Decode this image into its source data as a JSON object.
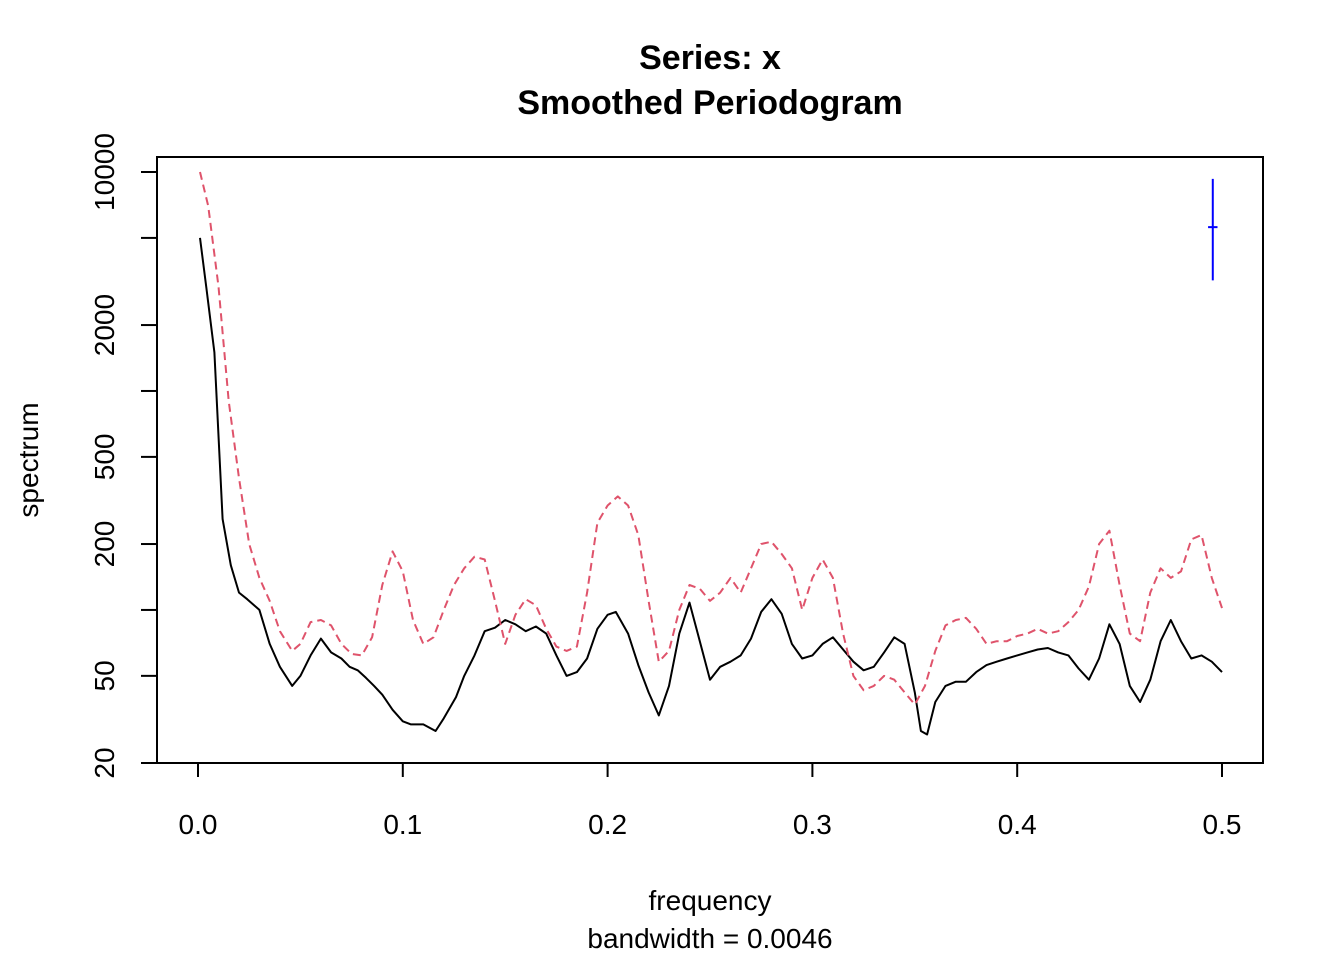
{
  "chart_data": {
    "type": "line",
    "title": "Series: x",
    "subtitle": "Smoothed Periodogram",
    "xlabel": "frequency",
    "xsublabel": "bandwidth = 0.0046",
    "ylabel": "spectrum",
    "xlim": [
      0.0,
      0.5
    ],
    "ylim": [
      20,
      10000
    ],
    "ylog": true,
    "x_ticks": [
      "0.0",
      "0.1",
      "0.2",
      "0.3",
      "0.4",
      "0.5"
    ],
    "y_ticks": [
      {
        "value": 20,
        "label": "20"
      },
      {
        "value": 50,
        "label": "50"
      },
      {
        "value": 100,
        "label": ""
      },
      {
        "value": 200,
        "label": "200"
      },
      {
        "value": 500,
        "label": "500"
      },
      {
        "value": 1000,
        "label": ""
      },
      {
        "value": 2000,
        "label": "2000"
      },
      {
        "value": 5000,
        "label": ""
      },
      {
        "value": 10000,
        "label": "10000"
      }
    ],
    "grid": false,
    "series": [
      {
        "color": "#000000",
        "dash": "solid",
        "points": [
          [
            0.001,
            5000
          ],
          [
            0.004,
            3000
          ],
          [
            0.008,
            1500
          ],
          [
            0.012,
            260
          ],
          [
            0.016,
            160
          ],
          [
            0.02,
            120
          ],
          [
            0.024,
            112
          ],
          [
            0.03,
            100
          ],
          [
            0.035,
            70
          ],
          [
            0.04,
            55
          ],
          [
            0.046,
            45
          ],
          [
            0.05,
            50
          ],
          [
            0.055,
            62
          ],
          [
            0.06,
            74
          ],
          [
            0.065,
            64
          ],
          [
            0.07,
            60
          ],
          [
            0.074,
            55
          ],
          [
            0.078,
            53
          ],
          [
            0.082,
            49
          ],
          [
            0.086,
            45
          ],
          [
            0.09,
            41
          ],
          [
            0.095,
            35
          ],
          [
            0.1,
            31
          ],
          [
            0.104,
            30
          ],
          [
            0.11,
            30
          ],
          [
            0.116,
            28
          ],
          [
            0.12,
            32
          ],
          [
            0.126,
            40
          ],
          [
            0.13,
            50
          ],
          [
            0.135,
            62
          ],
          [
            0.14,
            80
          ],
          [
            0.145,
            83
          ],
          [
            0.15,
            90
          ],
          [
            0.155,
            86
          ],
          [
            0.16,
            80
          ],
          [
            0.165,
            84
          ],
          [
            0.17,
            78
          ],
          [
            0.175,
            62
          ],
          [
            0.18,
            50
          ],
          [
            0.185,
            52
          ],
          [
            0.19,
            60
          ],
          [
            0.195,
            82
          ],
          [
            0.2,
            95
          ],
          [
            0.204,
            98
          ],
          [
            0.21,
            78
          ],
          [
            0.215,
            56
          ],
          [
            0.22,
            42
          ],
          [
            0.225,
            33
          ],
          [
            0.23,
            45
          ],
          [
            0.235,
            78
          ],
          [
            0.24,
            108
          ],
          [
            0.245,
            72
          ],
          [
            0.25,
            48
          ],
          [
            0.255,
            55
          ],
          [
            0.26,
            58
          ],
          [
            0.265,
            62
          ],
          [
            0.27,
            74
          ],
          [
            0.275,
            98
          ],
          [
            0.28,
            112
          ],
          [
            0.285,
            96
          ],
          [
            0.29,
            70
          ],
          [
            0.295,
            60
          ],
          [
            0.3,
            62
          ],
          [
            0.305,
            70
          ],
          [
            0.31,
            75
          ],
          [
            0.315,
            66
          ],
          [
            0.32,
            58
          ],
          [
            0.325,
            53
          ],
          [
            0.33,
            55
          ],
          [
            0.335,
            64
          ],
          [
            0.34,
            75
          ],
          [
            0.345,
            70
          ],
          [
            0.35,
            42
          ],
          [
            0.353,
            28
          ],
          [
            0.356,
            27
          ],
          [
            0.36,
            38
          ],
          [
            0.365,
            45
          ],
          [
            0.37,
            47
          ],
          [
            0.375,
            47
          ],
          [
            0.38,
            52
          ],
          [
            0.385,
            56
          ],
          [
            0.39,
            58
          ],
          [
            0.395,
            60
          ],
          [
            0.4,
            62
          ],
          [
            0.405,
            64
          ],
          [
            0.41,
            66
          ],
          [
            0.415,
            67
          ],
          [
            0.42,
            64
          ],
          [
            0.425,
            62
          ],
          [
            0.43,
            54
          ],
          [
            0.435,
            48
          ],
          [
            0.44,
            60
          ],
          [
            0.445,
            86
          ],
          [
            0.45,
            70
          ],
          [
            0.455,
            45
          ],
          [
            0.46,
            38
          ],
          [
            0.465,
            48
          ],
          [
            0.47,
            72
          ],
          [
            0.475,
            90
          ],
          [
            0.48,
            72
          ],
          [
            0.485,
            60
          ],
          [
            0.49,
            62
          ],
          [
            0.495,
            58
          ],
          [
            0.5,
            52
          ]
        ]
      },
      {
        "color": "#df536b",
        "dash": "dashed",
        "points": [
          [
            0.001,
            10000
          ],
          [
            0.005,
            7000
          ],
          [
            0.01,
            3000
          ],
          [
            0.015,
            900
          ],
          [
            0.02,
            400
          ],
          [
            0.025,
            200
          ],
          [
            0.03,
            140
          ],
          [
            0.035,
            110
          ],
          [
            0.04,
            80
          ],
          [
            0.046,
            65
          ],
          [
            0.05,
            70
          ],
          [
            0.055,
            88
          ],
          [
            0.06,
            90
          ],
          [
            0.065,
            85
          ],
          [
            0.07,
            70
          ],
          [
            0.075,
            63
          ],
          [
            0.08,
            62
          ],
          [
            0.085,
            75
          ],
          [
            0.09,
            130
          ],
          [
            0.095,
            185
          ],
          [
            0.1,
            150
          ],
          [
            0.105,
            90
          ],
          [
            0.11,
            70
          ],
          [
            0.115,
            75
          ],
          [
            0.12,
            100
          ],
          [
            0.125,
            130
          ],
          [
            0.13,
            155
          ],
          [
            0.135,
            175
          ],
          [
            0.14,
            170
          ],
          [
            0.145,
            110
          ],
          [
            0.15,
            70
          ],
          [
            0.155,
            95
          ],
          [
            0.16,
            112
          ],
          [
            0.165,
            105
          ],
          [
            0.17,
            82
          ],
          [
            0.175,
            68
          ],
          [
            0.18,
            65
          ],
          [
            0.185,
            68
          ],
          [
            0.19,
            120
          ],
          [
            0.195,
            250
          ],
          [
            0.2,
            300
          ],
          [
            0.205,
            330
          ],
          [
            0.21,
            300
          ],
          [
            0.215,
            220
          ],
          [
            0.22,
            110
          ],
          [
            0.225,
            58
          ],
          [
            0.23,
            65
          ],
          [
            0.235,
            100
          ],
          [
            0.24,
            130
          ],
          [
            0.245,
            125
          ],
          [
            0.25,
            110
          ],
          [
            0.255,
            120
          ],
          [
            0.26,
            140
          ],
          [
            0.265,
            120
          ],
          [
            0.27,
            155
          ],
          [
            0.275,
            200
          ],
          [
            0.28,
            205
          ],
          [
            0.285,
            180
          ],
          [
            0.29,
            155
          ],
          [
            0.295,
            100
          ],
          [
            0.3,
            140
          ],
          [
            0.305,
            170
          ],
          [
            0.31,
            140
          ],
          [
            0.315,
            78
          ],
          [
            0.32,
            50
          ],
          [
            0.325,
            43
          ],
          [
            0.33,
            45
          ],
          [
            0.335,
            50
          ],
          [
            0.34,
            48
          ],
          [
            0.345,
            42
          ],
          [
            0.35,
            37
          ],
          [
            0.355,
            45
          ],
          [
            0.36,
            65
          ],
          [
            0.365,
            85
          ],
          [
            0.37,
            90
          ],
          [
            0.375,
            92
          ],
          [
            0.38,
            82
          ],
          [
            0.385,
            70
          ],
          [
            0.39,
            72
          ],
          [
            0.395,
            72
          ],
          [
            0.4,
            76
          ],
          [
            0.405,
            78
          ],
          [
            0.41,
            82
          ],
          [
            0.415,
            78
          ],
          [
            0.42,
            80
          ],
          [
            0.425,
            88
          ],
          [
            0.43,
            100
          ],
          [
            0.435,
            128
          ],
          [
            0.44,
            200
          ],
          [
            0.445,
            230
          ],
          [
            0.45,
            130
          ],
          [
            0.455,
            78
          ],
          [
            0.46,
            72
          ],
          [
            0.465,
            120
          ],
          [
            0.47,
            155
          ],
          [
            0.475,
            140
          ],
          [
            0.48,
            150
          ],
          [
            0.485,
            210
          ],
          [
            0.49,
            220
          ],
          [
            0.495,
            140
          ],
          [
            0.5,
            102
          ]
        ]
      }
    ],
    "bandwidth_marker": {
      "color": "#0000ff",
      "x": 0.4955,
      "y_center": 5600,
      "y_low": 3200,
      "y_high": 9300,
      "x_halfwidth": 0.0023
    }
  }
}
